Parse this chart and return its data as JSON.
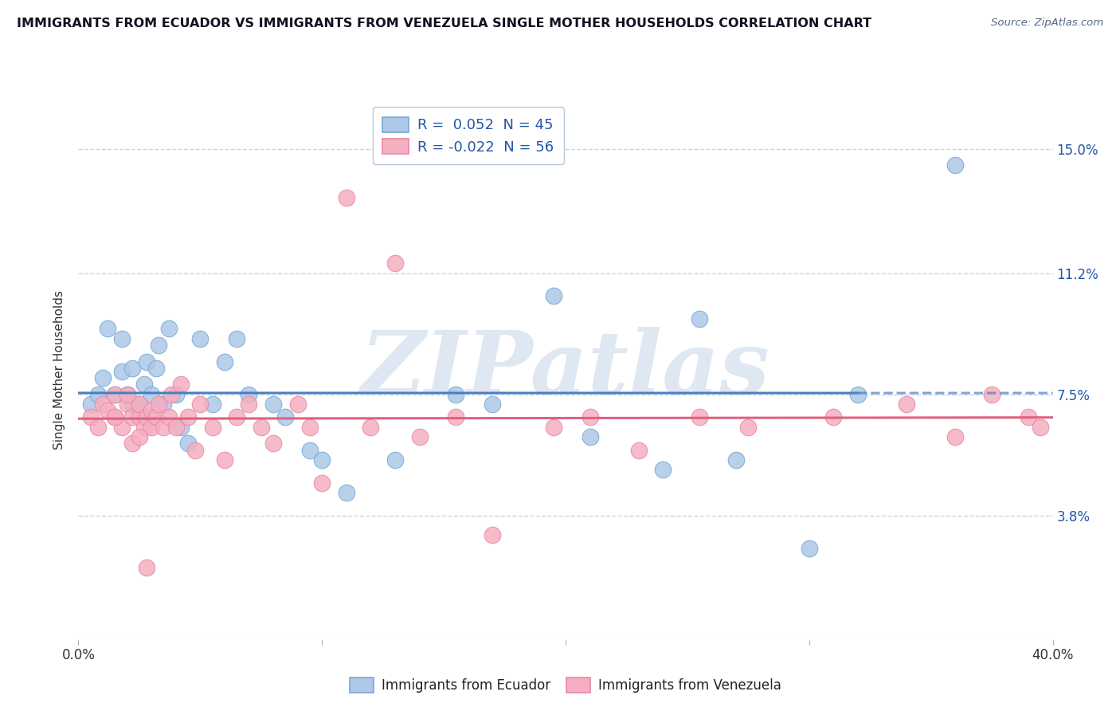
{
  "title": "IMMIGRANTS FROM ECUADOR VS IMMIGRANTS FROM VENEZUELA SINGLE MOTHER HOUSEHOLDS CORRELATION CHART",
  "source": "Source: ZipAtlas.com",
  "ylabel": "Single Mother Households",
  "xlim": [
    0.0,
    0.4
  ],
  "ylim": [
    0.0,
    0.165
  ],
  "yticks": [
    0.038,
    0.075,
    0.112,
    0.15
  ],
  "ytick_labels": [
    "3.8%",
    "7.5%",
    "11.2%",
    "15.0%"
  ],
  "xticks": [
    0.0,
    0.1,
    0.2,
    0.3,
    0.4
  ],
  "xtick_labels": [
    "0.0%",
    "",
    "",
    "",
    "40.0%"
  ],
  "ecuador_color": "#adc8e8",
  "venezuela_color": "#f5afc0",
  "ecuador_edge": "#7aaad0",
  "venezuela_edge": "#e888a8",
  "trend_blue": "#4a7fc0",
  "trend_pink": "#e06080",
  "watermark": "ZIPatlas",
  "background_color": "#ffffff",
  "grid_color": "#c8d4e8",
  "legend_text_color": "#2255aa",
  "ecuador_R": "0.052",
  "ecuador_N": "45",
  "venezuela_R": "-0.022",
  "venezuela_N": "56",
  "ecuador_x": [
    0.005,
    0.008,
    0.01,
    0.012,
    0.015,
    0.018,
    0.018,
    0.02,
    0.022,
    0.022,
    0.025,
    0.025,
    0.027,
    0.027,
    0.028,
    0.03,
    0.03,
    0.032,
    0.033,
    0.035,
    0.037,
    0.04,
    0.042,
    0.045,
    0.05,
    0.055,
    0.06,
    0.065,
    0.07,
    0.08,
    0.085,
    0.095,
    0.1,
    0.11,
    0.13,
    0.155,
    0.17,
    0.195,
    0.21,
    0.24,
    0.255,
    0.27,
    0.3,
    0.32,
    0.36
  ],
  "ecuador_y": [
    0.072,
    0.075,
    0.08,
    0.095,
    0.075,
    0.082,
    0.092,
    0.075,
    0.072,
    0.083,
    0.07,
    0.072,
    0.068,
    0.078,
    0.085,
    0.075,
    0.068,
    0.083,
    0.09,
    0.072,
    0.095,
    0.075,
    0.065,
    0.06,
    0.092,
    0.072,
    0.085,
    0.092,
    0.075,
    0.072,
    0.068,
    0.058,
    0.055,
    0.045,
    0.055,
    0.075,
    0.072,
    0.105,
    0.062,
    0.052,
    0.098,
    0.055,
    0.028,
    0.075,
    0.145
  ],
  "venezuela_x": [
    0.005,
    0.008,
    0.01,
    0.012,
    0.015,
    0.015,
    0.018,
    0.02,
    0.022,
    0.022,
    0.025,
    0.025,
    0.027,
    0.028,
    0.03,
    0.03,
    0.032,
    0.033,
    0.035,
    0.037,
    0.038,
    0.04,
    0.042,
    0.045,
    0.048,
    0.05,
    0.055,
    0.06,
    0.065,
    0.07,
    0.075,
    0.08,
    0.09,
    0.095,
    0.1,
    0.11,
    0.12,
    0.14,
    0.155,
    0.17,
    0.195,
    0.21,
    0.23,
    0.255,
    0.275,
    0.31,
    0.34,
    0.36,
    0.375,
    0.39,
    0.395,
    0.02,
    0.025,
    0.028,
    0.13,
    0.015
  ],
  "venezuela_y": [
    0.068,
    0.065,
    0.072,
    0.07,
    0.068,
    0.075,
    0.065,
    0.072,
    0.068,
    0.06,
    0.068,
    0.072,
    0.065,
    0.068,
    0.065,
    0.07,
    0.068,
    0.072,
    0.065,
    0.068,
    0.075,
    0.065,
    0.078,
    0.068,
    0.058,
    0.072,
    0.065,
    0.055,
    0.068,
    0.072,
    0.065,
    0.06,
    0.072,
    0.065,
    0.048,
    0.135,
    0.065,
    0.062,
    0.068,
    0.032,
    0.065,
    0.068,
    0.058,
    0.068,
    0.065,
    0.068,
    0.072,
    0.062,
    0.075,
    0.068,
    0.065,
    0.075,
    0.062,
    0.022,
    0.115,
    0.068
  ]
}
